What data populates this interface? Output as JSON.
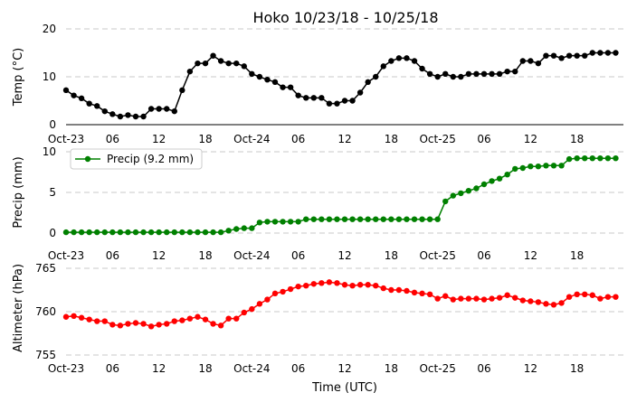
{
  "chart_data": {
    "type": "line",
    "title": "Hoko 10/23/18 - 10/25/18",
    "xlabel": "Time (UTC)",
    "x_tick_labels": [
      "Oct-23",
      "06",
      "12",
      "18",
      "Oct-24",
      "06",
      "12",
      "18",
      "Oct-25",
      "06",
      "12",
      "18"
    ],
    "x_hours": [
      0,
      1,
      2,
      3,
      4,
      5,
      6,
      7,
      8,
      9,
      10,
      11,
      12,
      13,
      14,
      15,
      16,
      17,
      18,
      19,
      20,
      21,
      22,
      23,
      24,
      25,
      26,
      27,
      28,
      29,
      30,
      31,
      32,
      33,
      34,
      35,
      36,
      37,
      38,
      39,
      40,
      41,
      42,
      43,
      44,
      45,
      46,
      47,
      48,
      49,
      50,
      51,
      52,
      53,
      54,
      55,
      56,
      57,
      58,
      59,
      60,
      61,
      62,
      63,
      64,
      65,
      66,
      67,
      68,
      69,
      70,
      71
    ],
    "panels": [
      {
        "ylabel": "Temp ($^\\circ$C)",
        "ylabel_display": "Temp (°C)",
        "ylim": [
          0,
          20
        ],
        "yticks": [
          0,
          10,
          20
        ],
        "series": [
          {
            "color": "#000000",
            "values": [
              7.2,
              6.1,
              5.5,
              4.4,
              3.9,
              2.8,
              2.2,
              1.7,
              2.0,
              1.7,
              1.7,
              3.3,
              3.3,
              3.3,
              2.8,
              7.2,
              11.1,
              12.8,
              12.8,
              14.4,
              13.3,
              12.8,
              12.8,
              12.2,
              10.6,
              10.0,
              9.4,
              8.9,
              7.8,
              7.8,
              6.1,
              5.6,
              5.6,
              5.6,
              4.4,
              4.4,
              5.0,
              5.0,
              6.7,
              8.9,
              10.0,
              12.2,
              13.3,
              13.9,
              13.9,
              13.3,
              11.7,
              10.6,
              10.0,
              10.6,
              10.0,
              10.0,
              10.6,
              10.6,
              10.6,
              10.6,
              10.6,
              11.1,
              11.1,
              13.3,
              13.3,
              12.8,
              14.4,
              14.4,
              13.9,
              14.4,
              14.4,
              14.4,
              15.0,
              15.0,
              15.0,
              15.0
            ]
          }
        ]
      },
      {
        "ylabel": "Precip (mm)",
        "ylim": [
          0,
          10
        ],
        "yticks": [
          0,
          5,
          10
        ],
        "legend": "Precip (9.2 mm)",
        "legend_position": "top-left",
        "series": [
          {
            "name": "Precip (9.2 mm)",
            "color": "#008000",
            "values": [
              0.1,
              0.1,
              0.1,
              0.1,
              0.1,
              0.1,
              0.1,
              0.1,
              0.1,
              0.1,
              0.1,
              0.1,
              0.1,
              0.1,
              0.1,
              0.1,
              0.1,
              0.1,
              0.1,
              0.1,
              0.1,
              0.3,
              0.5,
              0.6,
              0.6,
              1.3,
              1.4,
              1.4,
              1.4,
              1.4,
              1.4,
              1.7,
              1.7,
              1.7,
              1.7,
              1.7,
              1.7,
              1.7,
              1.7,
              1.7,
              1.7,
              1.7,
              1.7,
              1.7,
              1.7,
              1.7,
              1.7,
              1.7,
              1.7,
              3.9,
              4.6,
              4.9,
              5.2,
              5.5,
              6.0,
              6.4,
              6.7,
              7.2,
              7.9,
              8.0,
              8.2,
              8.2,
              8.3,
              8.3,
              8.3,
              9.1,
              9.2,
              9.2,
              9.2,
              9.2,
              9.2,
              9.2
            ]
          }
        ]
      },
      {
        "ylabel": "Altimeter (hPa)",
        "ylim": [
          755,
          765
        ],
        "yticks": [
          755,
          760,
          765
        ],
        "series": [
          {
            "color": "#ff0000",
            "values": [
              759.4,
              759.5,
              759.3,
              759.1,
              758.9,
              758.9,
              758.5,
              758.4,
              758.6,
              758.7,
              758.6,
              758.3,
              758.5,
              758.6,
              758.9,
              759.0,
              759.2,
              759.4,
              759.1,
              758.6,
              758.4,
              759.2,
              759.2,
              759.9,
              760.3,
              760.9,
              761.4,
              762.1,
              762.3,
              762.6,
              762.9,
              763.0,
              763.2,
              763.3,
              763.4,
              763.3,
              763.1,
              763.0,
              763.1,
              763.1,
              763.0,
              762.7,
              762.5,
              762.5,
              762.4,
              762.2,
              762.1,
              762.0,
              761.5,
              761.8,
              761.4,
              761.5,
              761.5,
              761.5,
              761.4,
              761.5,
              761.6,
              761.9,
              761.6,
              761.3,
              761.2,
              761.1,
              760.9,
              760.8,
              761.0,
              761.7,
              762.0,
              762.0,
              761.9,
              761.5,
              761.7,
              761.7
            ]
          }
        ]
      }
    ],
    "grid": true
  }
}
